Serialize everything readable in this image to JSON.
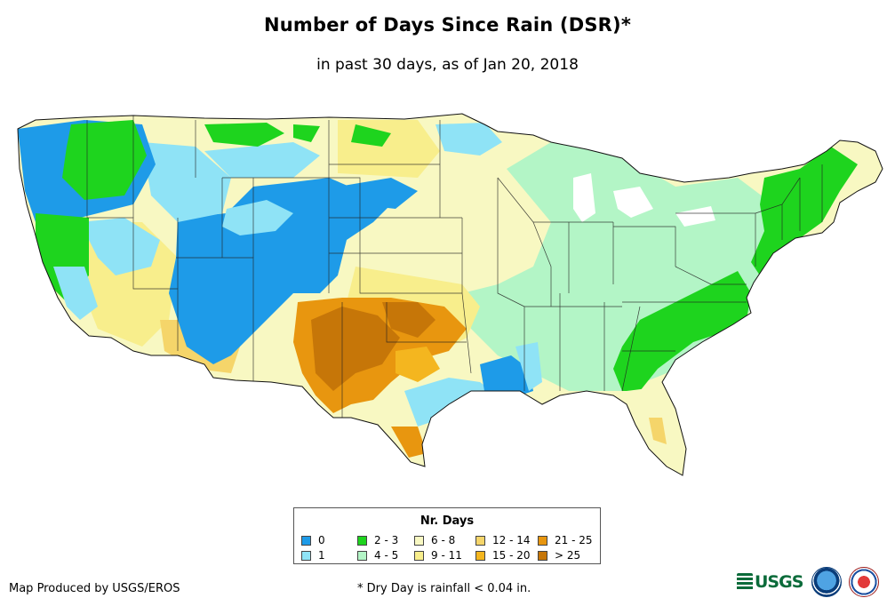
{
  "title": "Number of Days Since Rain (DSR)*",
  "subtitle": "in past 30 days, as of Jan 20, 2018",
  "legend": {
    "title": "Nr. Days",
    "items": [
      {
        "label": "0",
        "color": "#1e9be8"
      },
      {
        "label": "1",
        "color": "#8fe3f6"
      },
      {
        "label": "2 - 3",
        "color": "#1ed41e"
      },
      {
        "label": "4 - 5",
        "color": "#b3f5c6"
      },
      {
        "label": "6 - 8",
        "color": "#f8f8c2"
      },
      {
        "label": "9 - 11",
        "color": "#f8ee8c"
      },
      {
        "label": "12 - 14",
        "color": "#f5d56a"
      },
      {
        "label": "15 - 20",
        "color": "#f4b61f"
      },
      {
        "label": "21 - 25",
        "color": "#e8960f"
      },
      {
        "label": "> 25",
        "color": "#c67608"
      }
    ]
  },
  "footer": {
    "credit": "Map Produced by USGS/EROS",
    "note": "* Dry Day is rainfall < 0.04 in."
  },
  "logos": {
    "usgs_text": "USGS",
    "icons": [
      "usgs-logo",
      "noaa-logo",
      "nws-logo"
    ]
  }
}
